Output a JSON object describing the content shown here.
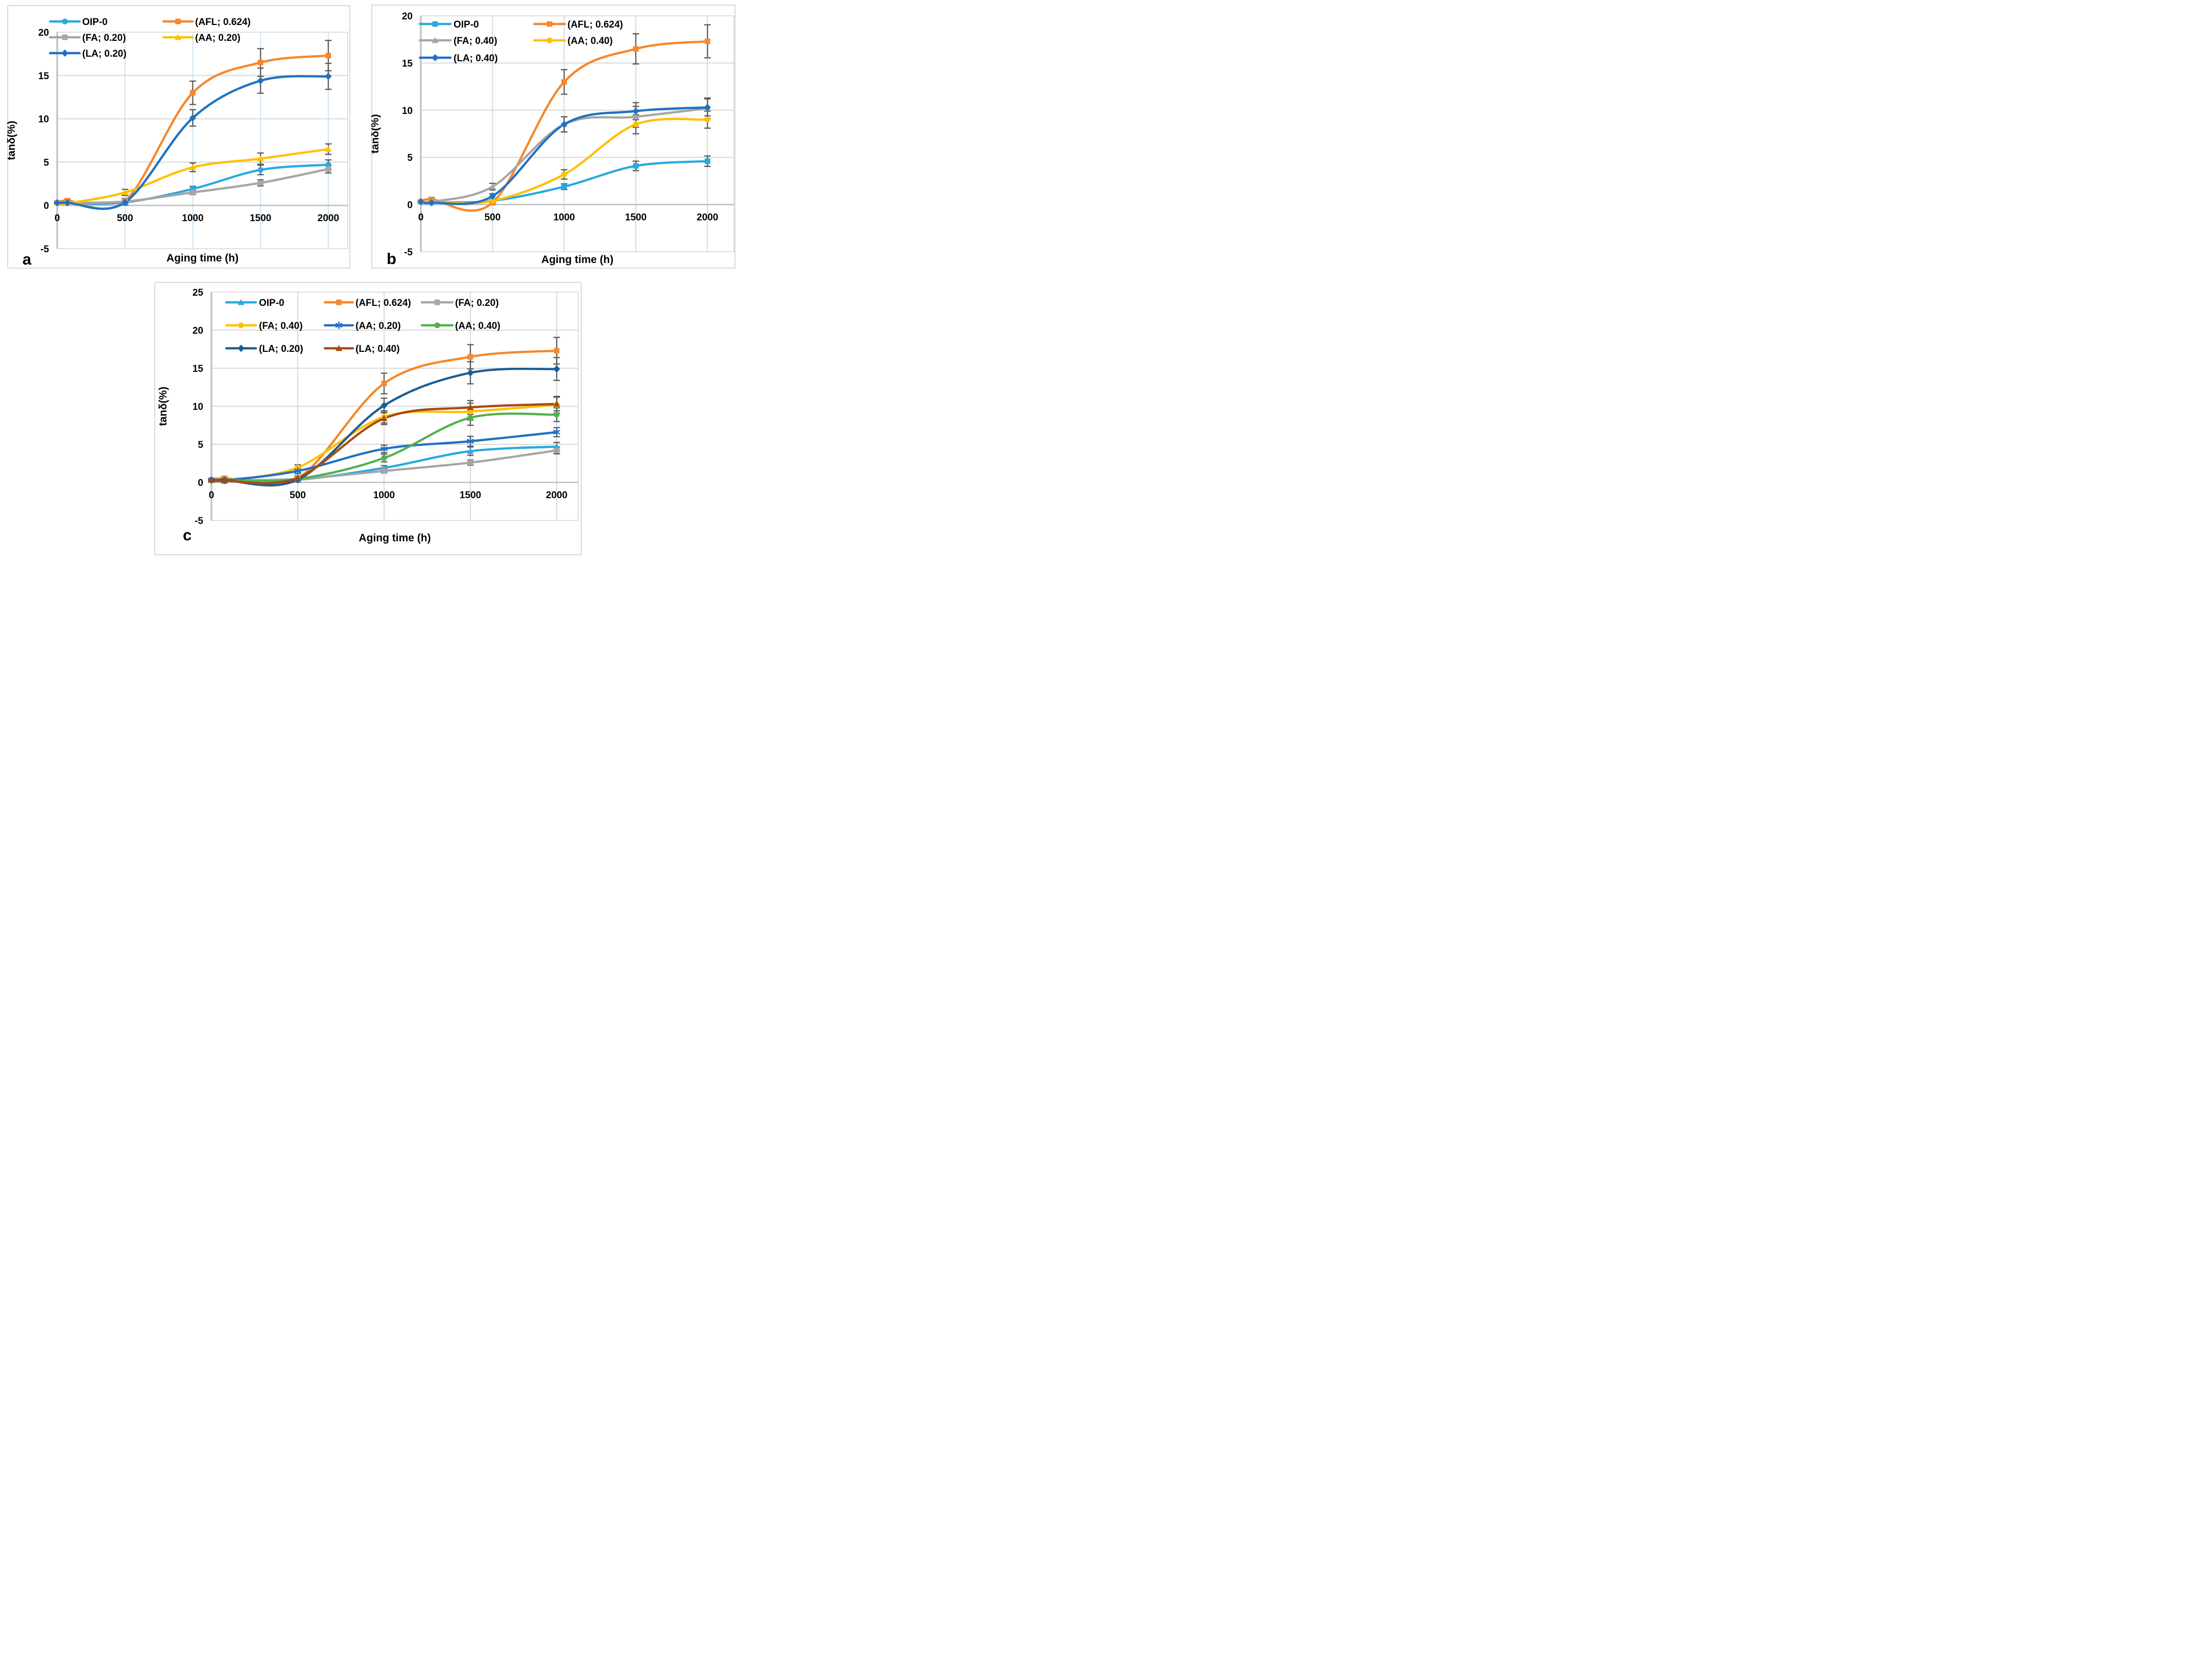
{
  "figure": {
    "xlabel": "Aging time (h)",
    "ylabel": "tanδ(%)",
    "panel_label_color": "#FF0000",
    "gridline_color": "#D9D9D9",
    "axis_color": "#BFBFBF",
    "error_bar_color": "#595959",
    "vertical_grid_color_panel_a": "#CBE3F3"
  },
  "chart_data": [
    {
      "id": "a",
      "type": "line",
      "panel_label": "a",
      "xlabel": "Aging time (h)",
      "ylabel": "tanδ(%)",
      "x": [
        0,
        75,
        500,
        1000,
        1500,
        2000
      ],
      "x_ticks": [
        0,
        500,
        1000,
        1500,
        2000
      ],
      "y_ticks": [
        20,
        15,
        10,
        5,
        0,
        -5
      ],
      "ylim": [
        -5,
        20
      ],
      "grid": true,
      "legend_position": "inside-top-left",
      "legend_rows": [
        [
          "OIP-0",
          "(AFL; 0.624)"
        ],
        [
          "(FA; 0.20)",
          "(AA; 0.20)"
        ],
        [
          "(LA; 0.20)",
          null
        ]
      ],
      "series": [
        {
          "name": "OIP-0",
          "color": "#29A9E0",
          "marker": "circle",
          "values": [
            0.3,
            0.25,
            0.35,
            1.9,
            4.1,
            4.7
          ],
          "errors": [
            0,
            0,
            0,
            0.3,
            0.55,
            0.55
          ]
        },
        {
          "name": "(AFL; 0.624)",
          "color": "#F6872B",
          "marker": "square",
          "values": [
            0.3,
            0.55,
            0.5,
            13.0,
            16.5,
            17.3
          ],
          "errors": [
            0.1,
            0.15,
            0.3,
            1.35,
            1.6,
            1.75
          ]
        },
        {
          "name": "(FA; 0.20)",
          "color": "#A6A6A6",
          "marker": "square",
          "values": [
            0.3,
            0.3,
            0.45,
            1.5,
            2.6,
            4.2
          ],
          "errors": [
            0,
            0,
            0,
            0.25,
            0.35,
            0.45
          ]
        },
        {
          "name": "(AA; 0.20)",
          "color": "#FFC000",
          "marker": "triangle",
          "values": [
            0.3,
            0.25,
            1.5,
            4.4,
            5.4,
            6.5
          ],
          "errors": [
            0,
            0,
            0.35,
            0.5,
            0.65,
            0.6
          ]
        },
        {
          "name": "(LA; 0.20)",
          "color": "#1F72C4",
          "marker": "diamond",
          "values": [
            0.3,
            0.3,
            0.35,
            10.1,
            14.4,
            14.9
          ],
          "errors": [
            0,
            0,
            0.3,
            0.95,
            1.45,
            1.5
          ]
        }
      ]
    },
    {
      "id": "b",
      "type": "line",
      "panel_label": "b",
      "xlabel": "Aging time (h)",
      "ylabel": "tanδ(%)",
      "x": [
        0,
        75,
        500,
        1000,
        1500,
        2000
      ],
      "x_ticks": [
        0,
        500,
        1000,
        1500,
        2000
      ],
      "y_ticks": [
        20,
        15,
        10,
        5,
        0,
        -5
      ],
      "ylim": [
        -5,
        20
      ],
      "grid": true,
      "legend_position": "inside-top-left",
      "legend_rows": [
        [
          "OIP-0",
          "(AFL; 0.624)"
        ],
        [
          "(FA; 0.40)",
          "(AA; 0.40)"
        ],
        [
          "(LA; 0.40)",
          null
        ]
      ],
      "series": [
        {
          "name": "OIP-0",
          "color": "#29A9E0",
          "marker": "square",
          "values": [
            0.3,
            0.25,
            0.4,
            1.9,
            4.1,
            4.6
          ],
          "errors": [
            0,
            0,
            0,
            0.3,
            0.5,
            0.55
          ]
        },
        {
          "name": "(AFL; 0.624)",
          "color": "#F6872B",
          "marker": "square",
          "values": [
            0.3,
            0.55,
            0.2,
            13.0,
            16.5,
            17.3
          ],
          "errors": [
            0.1,
            0.15,
            0.2,
            1.3,
            1.6,
            1.75
          ]
        },
        {
          "name": "(FA; 0.40)",
          "color": "#A6A6A6",
          "marker": "triangle",
          "values": [
            0.3,
            0.3,
            1.9,
            8.5,
            9.3,
            10.2
          ],
          "errors": [
            0,
            0,
            0.35,
            0.8,
            1.1,
            1.1
          ]
        },
        {
          "name": "(AA; 0.40)",
          "color": "#FFC000",
          "marker": "circle",
          "values": [
            0.3,
            0.25,
            0.4,
            3.2,
            8.5,
            9.0
          ],
          "errors": [
            0,
            0,
            0.2,
            0.5,
            1.0,
            0.9
          ]
        },
        {
          "name": "(LA; 0.40)",
          "color": "#1F72C4",
          "marker": "diamond",
          "values": [
            0.3,
            0.2,
            0.9,
            8.5,
            9.9,
            10.3
          ],
          "errors": [
            0,
            0,
            0.25,
            0.8,
            0.9,
            0.9
          ]
        }
      ]
    },
    {
      "id": "c",
      "type": "line",
      "panel_label": "c",
      "xlabel": "Aging time (h)",
      "ylabel": "tanδ(%)",
      "x": [
        0,
        75,
        500,
        1000,
        1500,
        2000
      ],
      "x_ticks": [
        0,
        500,
        1000,
        1500,
        2000
      ],
      "y_ticks": [
        25,
        20,
        15,
        10,
        5,
        0,
        -5
      ],
      "ylim": [
        -5,
        25
      ],
      "grid": true,
      "legend_position": "inside-top-left",
      "legend_rows": [
        [
          "OIP-0",
          "(AFL; 0.624)",
          "(FA; 0.20)"
        ],
        [
          "(FA; 0.40)",
          "(AA; 0.20)",
          "(AA; 0.40)"
        ],
        [
          "(LA; 0.20)",
          "(LA; 0.40)",
          null
        ]
      ],
      "series": [
        {
          "name": "OIP-0",
          "color": "#29A9E0",
          "marker": "triangle",
          "values": [
            0.3,
            0.25,
            0.35,
            1.9,
            4.1,
            4.7
          ],
          "errors": [
            0,
            0,
            0,
            0.3,
            0.55,
            0.55
          ]
        },
        {
          "name": "(AFL; 0.624)",
          "color": "#F6872B",
          "marker": "square",
          "values": [
            0.3,
            0.55,
            0.5,
            13.0,
            16.5,
            17.3
          ],
          "errors": [
            0.1,
            0.15,
            0.3,
            1.35,
            1.6,
            1.75
          ]
        },
        {
          "name": "(FA; 0.20)",
          "color": "#A6A6A6",
          "marker": "square",
          "values": [
            0.3,
            0.3,
            0.45,
            1.5,
            2.6,
            4.2
          ],
          "errors": [
            0,
            0,
            0,
            0.25,
            0.35,
            0.45
          ]
        },
        {
          "name": "(FA; 0.40)",
          "color": "#FFC000",
          "marker": "circle",
          "values": [
            0.3,
            0.3,
            1.95,
            8.6,
            9.3,
            10.2
          ],
          "errors": [
            0,
            0,
            0.35,
            0.8,
            1.1,
            1.1
          ]
        },
        {
          "name": "(AA; 0.20)",
          "color": "#2272C3",
          "marker": "asterisk",
          "values": [
            0.3,
            0.25,
            1.5,
            4.4,
            5.4,
            6.6
          ],
          "errors": [
            0,
            0,
            0.35,
            0.5,
            0.65,
            0.6
          ]
        },
        {
          "name": "(AA; 0.40)",
          "color": "#52B14D",
          "marker": "circle",
          "values": [
            0.3,
            0.25,
            0.45,
            3.2,
            8.5,
            8.9
          ],
          "errors": [
            0,
            0,
            0.2,
            0.5,
            1.0,
            0.9
          ]
        },
        {
          "name": "(LA; 0.20)",
          "color": "#1B5E94",
          "marker": "diamond",
          "values": [
            0.3,
            0.3,
            0.35,
            10.1,
            14.4,
            14.9
          ],
          "errors": [
            0,
            0,
            0.3,
            0.95,
            1.45,
            1.5
          ]
        },
        {
          "name": "(LA; 0.40)",
          "color": "#A74A13",
          "marker": "triangle",
          "values": [
            0.3,
            0.2,
            0.6,
            8.4,
            9.85,
            10.3
          ],
          "errors": [
            0,
            0,
            0.25,
            0.8,
            0.9,
            0.9
          ]
        }
      ]
    }
  ]
}
